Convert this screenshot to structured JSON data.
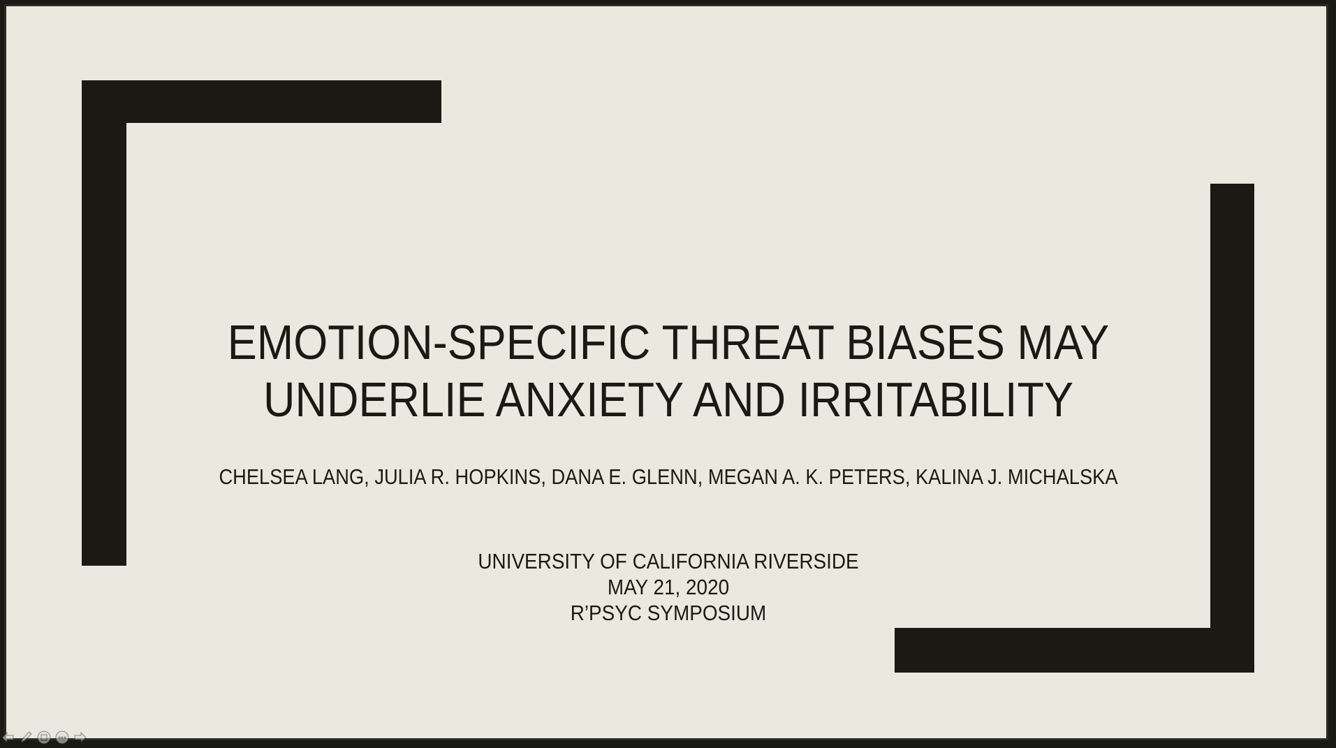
{
  "slide": {
    "title_line1": "EMOTION-SPECIFIC THREAT BIASES MAY",
    "title_line2": "UNDERLIE ANXIETY AND IRRITABILITY",
    "authors": "CHELSEA LANG, JULIA R. HOPKINS, DANA E. GLENN, MEGAN A. K. PETERS, KALINA J. MICHALSKA",
    "affiliation": "UNIVERSITY OF CALIFORNIA RIVERSIDE",
    "date": "MAY 21, 2020",
    "event": "R’PSYC SYMPOSIUM"
  },
  "controls": {
    "icons": [
      "previous-arrow-icon",
      "pen-icon",
      "slides-grid-icon",
      "more-options-icon",
      "next-arrow-icon"
    ]
  },
  "colors": {
    "background": "#ebe9df",
    "accent": "#1a1a12"
  }
}
